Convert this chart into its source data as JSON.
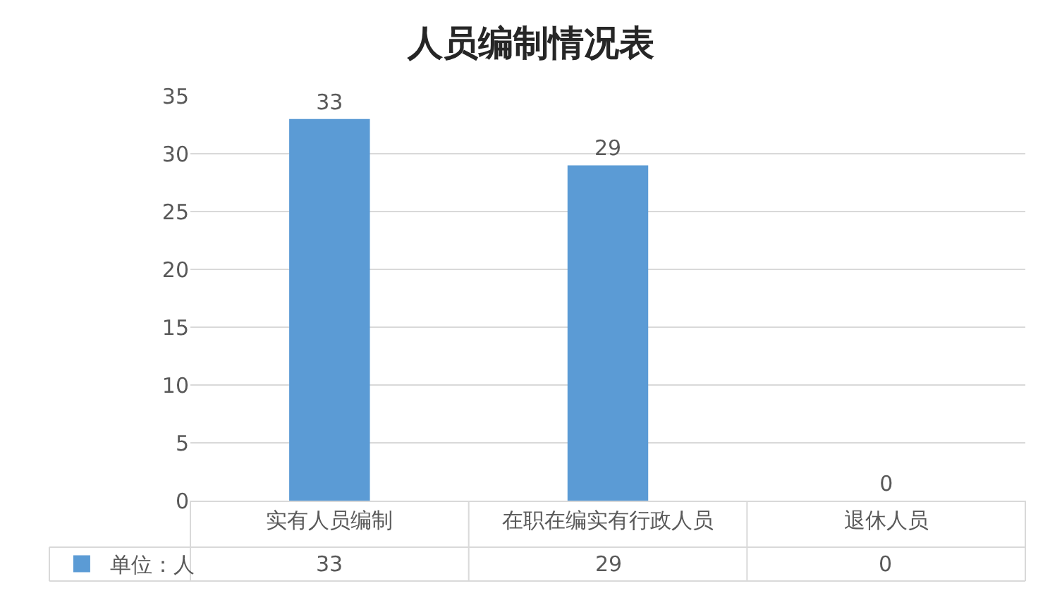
{
  "chart_data": {
    "type": "bar",
    "title": "人员编制情况表",
    "categories": [
      "实有人员编制",
      "在职在编实有行政人员",
      "退休人员"
    ],
    "series": [
      {
        "name": "单位：人",
        "color": "#5b9bd5",
        "values": [
          33,
          29,
          0
        ],
        "value_labels": [
          "33",
          "29",
          "0"
        ]
      }
    ],
    "ylim": [
      0,
      35
    ],
    "yticks": [
      0,
      5,
      10,
      15,
      20,
      25,
      30,
      35
    ],
    "grid": "y",
    "legend": "bottom left",
    "annotations": [
      "33",
      "29",
      "0"
    ]
  }
}
